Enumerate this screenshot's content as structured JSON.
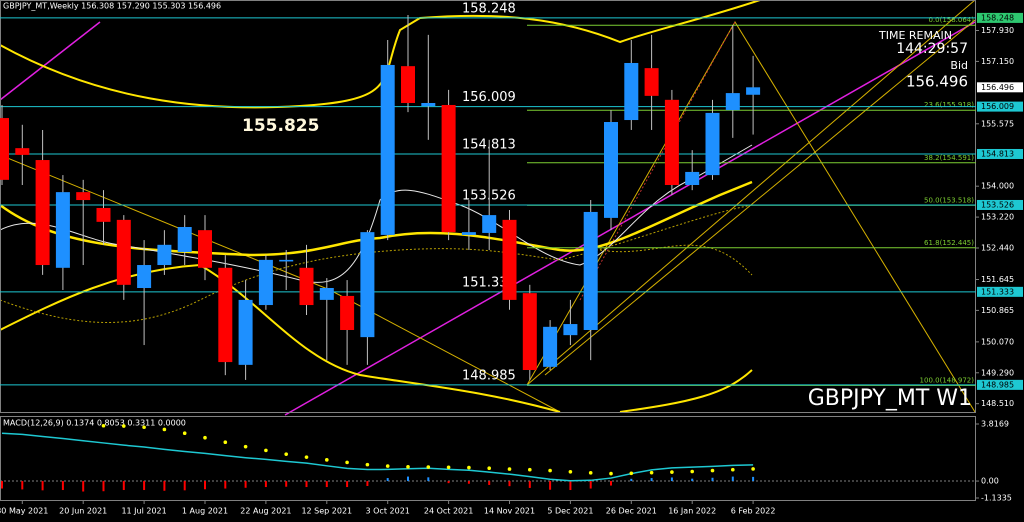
{
  "chart_data": {
    "type": "candlestick",
    "title": "GBPJPY_MT,Weekly 156.308 157.290 155.303 156.496",
    "watermark": "GBPJPY_MT W1",
    "time_remain_label": "TIME REMAIN",
    "time_remain": "144:29:57",
    "bid_label": "Bid",
    "bid": 156.496,
    "price_tag": 155.825,
    "categories": [
      null,
      "30 May 2021",
      null,
      null,
      "20 Jun 2021",
      null,
      null,
      "11 Jul 2021",
      null,
      null,
      "1 Aug 2021",
      null,
      null,
      "22 Aug 2021",
      null,
      null,
      "12 Sep 2021",
      null,
      null,
      "3 Oct 2021",
      null,
      null,
      "24 Oct 2021",
      null,
      null,
      "14 Nov 2021",
      null,
      null,
      "5 Dec 2021",
      null,
      null,
      "26 Dec 2021",
      null,
      null,
      "16 Jan 2022",
      null,
      null,
      "6 Feb 2022"
    ],
    "open": [
      155.72,
      154.96,
      154.66,
      151.94,
      153.85,
      153.45,
      153.15,
      151.43,
      152.01,
      152.34,
      152.89,
      151.94,
      149.49,
      151.0,
      152.1,
      151.94,
      151.13,
      151.23,
      150.19,
      152.77,
      157.03,
      156.02,
      156.05,
      152.77,
      152.82,
      153.15,
      151.3,
      149.44,
      150.24,
      150.37,
      153.2,
      155.67,
      156.98,
      156.18,
      154.03,
      154.28,
      155.92,
      156.308
    ],
    "high": [
      156.05,
      155.55,
      155.42,
      154.28,
      154.16,
      153.9,
      153.27,
      152.64,
      152.89,
      153.27,
      153.27,
      152.26,
      151.63,
      152.26,
      152.39,
      152.52,
      151.68,
      151.63,
      152.89,
      157.69,
      158.32,
      157.82,
      156.43,
      153.65,
      155.17,
      153.4,
      151.51,
      150.62,
      151.13,
      153.65,
      155.92,
      157.69,
      157.82,
      156.43,
      154.91,
      156.18,
      158.07,
      157.29
    ],
    "low": [
      154.03,
      154.03,
      151.76,
      151.38,
      152.01,
      152.52,
      151.13,
      149.99,
      151.76,
      152.01,
      151.63,
      149.23,
      149.11,
      150.88,
      151.38,
      150.75,
      149.61,
      149.49,
      149.49,
      152.64,
      155.87,
      155.17,
      152.64,
      152.39,
      152.39,
      150.88,
      149.11,
      149.36,
      149.99,
      149.61,
      152.89,
      155.42,
      155.42,
      153.78,
      153.9,
      154.16,
      155.22,
      155.303
    ],
    "close": [
      154.16,
      154.79,
      152.01,
      153.85,
      153.65,
      153.1,
      151.51,
      152.01,
      152.52,
      152.97,
      151.94,
      149.56,
      151.13,
      152.14,
      152.14,
      151.0,
      151.43,
      150.37,
      152.84,
      157.06,
      156.1,
      156.1,
      152.84,
      152.84,
      153.27,
      151.13,
      149.36,
      150.45,
      150.52,
      153.35,
      155.62,
      157.11,
      156.28,
      154.03,
      154.36,
      155.85,
      156.35,
      156.496
    ],
    "up_color": "#1e90ff",
    "down_color": "#ff0000",
    "ylim": [
      148.3,
      158.7
    ],
    "yticks": [
      {
        "value": 157.93,
        "label": "157.930"
      },
      {
        "value": 157.15,
        "label": "157.150"
      },
      {
        "value": 155.575,
        "label": "155.575"
      },
      {
        "value": 154,
        "label": "154.000"
      },
      {
        "value": 153.22,
        "label": "153.220"
      },
      {
        "value": 152.44,
        "label": "152.440"
      },
      {
        "value": 151.645,
        "label": "151.645"
      },
      {
        "value": 150.865,
        "label": "150.865"
      },
      {
        "value": 150.07,
        "label": "150.070"
      },
      {
        "value": 149.29,
        "label": "149.290"
      },
      {
        "value": 148.51,
        "label": "148.510"
      }
    ],
    "levels": [
      158.248,
      156.009,
      154.813,
      153.526,
      151.333,
      148.985
    ],
    "level_color": "#1ec8d2",
    "fib_color": "#7ccd32",
    "fib_levels": [
      {
        "value": 158.064,
        "label": "0.0(158.064)"
      },
      {
        "value": 155.918,
        "label": "23.6(155.918)"
      },
      {
        "value": 154.591,
        "label": "38.2(154.591)"
      },
      {
        "value": 153.518,
        "label": "50.0(153.518)"
      },
      {
        "value": 152.445,
        "label": "61.8(152.445)"
      },
      {
        "value": 148.972,
        "label": "100.0(148.972)"
      }
    ],
    "macd": {
      "title": "MACD(12,26,9) 0.1374 0.8053 0.3311 0.0000",
      "ylim": [
        -1.1335,
        3.8169
      ],
      "yticks": [
        3.8169,
        {
          "value": 0,
          "label": "0.00"
        },
        -1.1335
      ],
      "line_color": "#1ec8d2",
      "signal_color": "#ffff00",
      "line": [
        3.2,
        3.12,
        2.98,
        2.85,
        2.7,
        2.55,
        2.4,
        2.28,
        2.12,
        1.98,
        1.85,
        1.7,
        1.56,
        1.45,
        1.32,
        1.2,
        1.02,
        0.85,
        0.77,
        0.78,
        0.82,
        0.86,
        0.78,
        0.72,
        0.6,
        0.46,
        0.3,
        0.12,
        0.02,
        0.05,
        0.2,
        0.5,
        0.75,
        0.88,
        0.93,
        0.98,
        1.05,
        1.08
      ],
      "signal": [
        null,
        null,
        null,
        null,
        null,
        3.7,
        3.68,
        3.6,
        3.45,
        3.2,
        2.9,
        2.6,
        2.3,
        2.05,
        1.8,
        1.6,
        1.42,
        1.25,
        1.1,
        1.0,
        0.95,
        0.94,
        0.92,
        0.9,
        0.86,
        0.8,
        0.76,
        0.7,
        0.62,
        0.55,
        0.5,
        0.52,
        0.56,
        0.6,
        0.64,
        0.7,
        0.76,
        0.81
      ],
      "hist": [
        -0.5,
        -0.56,
        -0.62,
        -0.6,
        -0.7,
        -0.68,
        -0.6,
        -0.6,
        -0.65,
        -0.62,
        -0.55,
        -0.5,
        -0.45,
        -0.4,
        -0.38,
        -0.4,
        -0.4,
        -0.4,
        -0.33,
        0.2,
        0.3,
        0.25,
        -0.14,
        -0.18,
        -0.26,
        -0.34,
        -0.46,
        -0.58,
        -0.6,
        -0.5,
        -0.3,
        0.15,
        0.2,
        0.24,
        0.16,
        0.22,
        0.3,
        0.28
      ]
    }
  }
}
